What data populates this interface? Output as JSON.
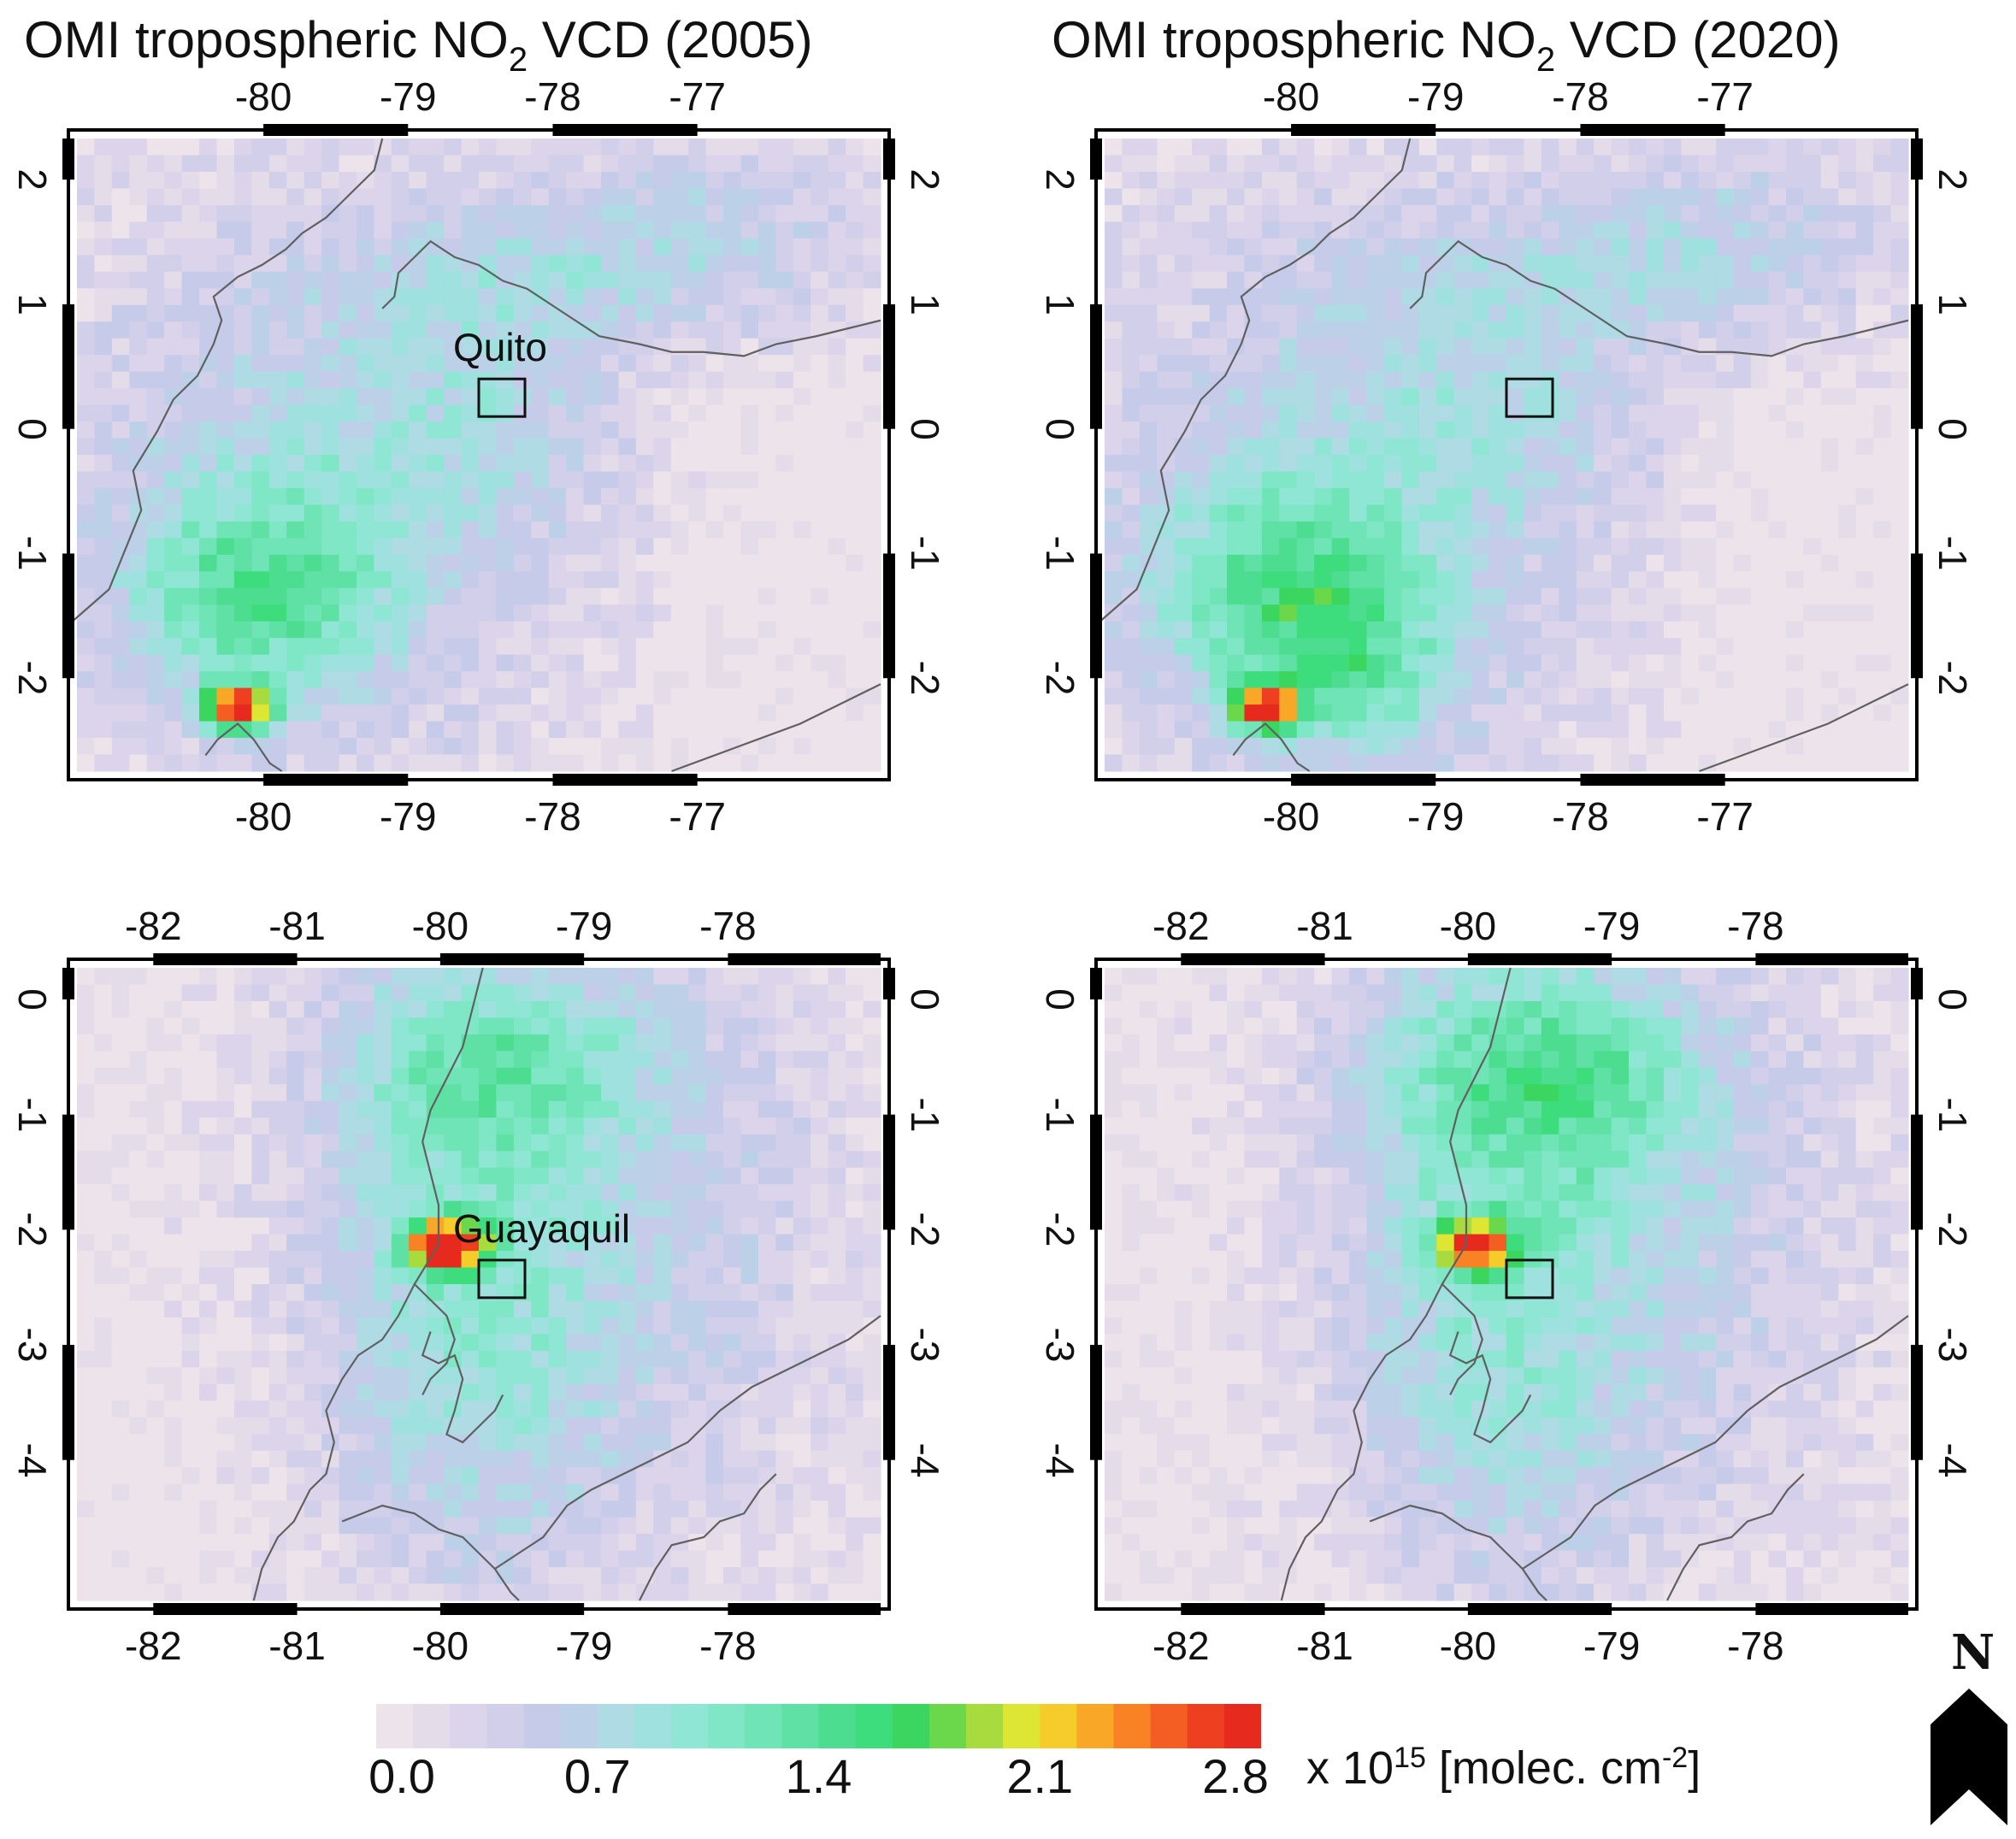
{
  "titles": [
    {
      "prefix": "OMI tropospheric NO",
      "sub": "2",
      "suffix": " VCD (2005)"
    },
    {
      "prefix": "OMI tropospheric NO",
      "sub": "2",
      "suffix": " VCD (2020)"
    }
  ],
  "panels": [
    {
      "id": "p1",
      "year": "2005",
      "region": "quito",
      "xticks": [
        "-80",
        "-79",
        "-78",
        "-77"
      ],
      "yticks": [
        "2",
        "1",
        "0",
        "-1",
        "-2"
      ],
      "city": "Quito",
      "show_city_label": true
    },
    {
      "id": "p2",
      "year": "2020",
      "region": "quito",
      "xticks": [
        "-80",
        "-79",
        "-78",
        "-77"
      ],
      "yticks": [
        "2",
        "1",
        "0",
        "-1",
        "-2"
      ],
      "city": "Quito",
      "show_city_label": false
    },
    {
      "id": "p3",
      "year": "2005",
      "region": "guayaquil",
      "xticks": [
        "-82",
        "-81",
        "-80",
        "-79",
        "-78"
      ],
      "yticks": [
        "0",
        "-1",
        "-2",
        "-3",
        "-4"
      ],
      "city": "Guayaquil",
      "show_city_label": true
    },
    {
      "id": "p4",
      "year": "2020",
      "region": "guayaquil",
      "xticks": [
        "-82",
        "-81",
        "-80",
        "-79",
        "-78"
      ],
      "yticks": [
        "0",
        "-1",
        "-2",
        "-3",
        "-4"
      ],
      "city": "Guayaquil",
      "show_city_label": false
    }
  ],
  "city_labels": {
    "quito": "Quito",
    "guayaquil": "Guayaquil"
  },
  "colorbar": {
    "min": 0.0,
    "max": 2.8,
    "tick_labels": [
      "0.0",
      "0.7",
      "1.4",
      "2.1",
      "2.8"
    ],
    "unit_prefix": "x 10",
    "unit_exp": "15",
    "unit_mid": " [molec. cm",
    "unit_exp2": "-2",
    "unit_suffix": "]",
    "colors": [
      "#ede3ea",
      "#e5dcea",
      "#dcd4ea",
      "#d2cfea",
      "#c7cbea",
      "#bcd1e8",
      "#aedbe4",
      "#9fe1de",
      "#8fe6d4",
      "#7fe6c6",
      "#6fe4b6",
      "#5fe0a4",
      "#4cdd90",
      "#3ddc7c",
      "#3ad65f",
      "#6ad84a",
      "#a8dc3e",
      "#dde632",
      "#f5cc2a",
      "#f9a726",
      "#f98224",
      "#f55e22",
      "#ee3f20",
      "#e62a1e"
    ]
  },
  "north_label": "N",
  "colors": {
    "coast": "#606060",
    "frame": "#000000"
  }
}
